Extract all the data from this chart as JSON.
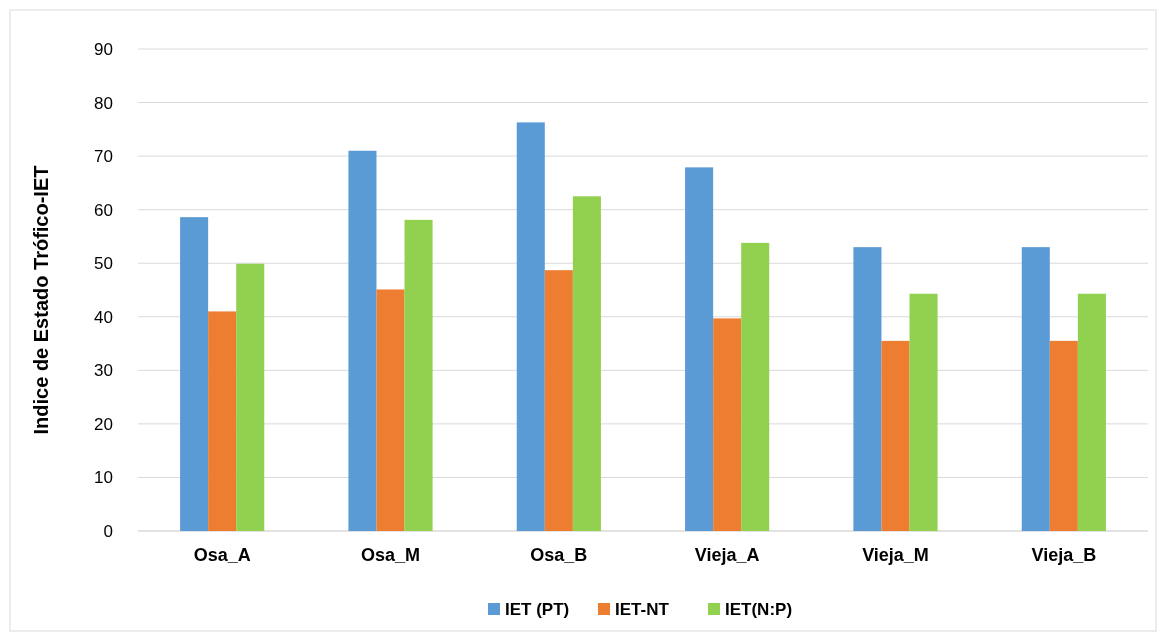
{
  "chart_data": {
    "type": "bar",
    "ylabel": "Indice de Estado Trófico-IET",
    "categories": [
      "Osa_A",
      "Osa_M",
      "Osa_B",
      "Vieja_A",
      "Vieja_M",
      "Vieja_B"
    ],
    "series": [
      {
        "name": "IET (PT)",
        "color": "#5b9bd5",
        "values": [
          58.6,
          71.0,
          76.3,
          67.9,
          53.0,
          53.0
        ]
      },
      {
        "name": "IET-NT",
        "color": "#ed7d31",
        "values": [
          41.0,
          45.1,
          48.7,
          39.7,
          35.5,
          35.5
        ]
      },
      {
        "name": "IET(N:P)",
        "color": "#92d050",
        "values": [
          49.9,
          58.1,
          62.5,
          53.8,
          44.3,
          44.3
        ]
      }
    ],
    "ylim": [
      0,
      90
    ],
    "yticks": [
      0,
      10,
      20,
      30,
      40,
      50,
      60,
      70,
      80,
      90
    ],
    "grid": "y",
    "legend": "bottom"
  }
}
